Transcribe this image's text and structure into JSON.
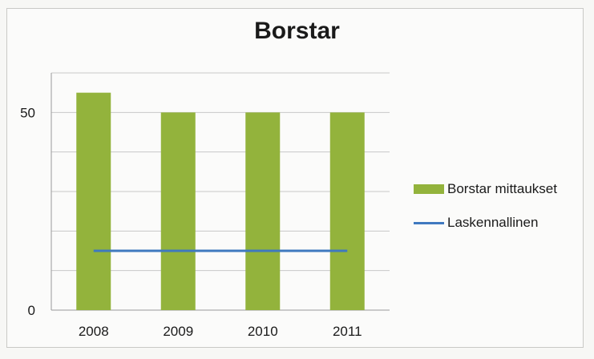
{
  "chart_data": {
    "type": "bar",
    "title": "Borstar",
    "categories": [
      "2008",
      "2009",
      "2010",
      "2011"
    ],
    "series": [
      {
        "name": "Borstar mittaukset",
        "type": "bar",
        "values": [
          55,
          50,
          50,
          50
        ]
      },
      {
        "name": "Laskennallinen",
        "type": "line",
        "values": [
          15,
          15,
          15,
          15
        ]
      }
    ],
    "ylim": [
      0,
      60
    ],
    "yticks": [
      0,
      50
    ],
    "grid": true,
    "legend": "right",
    "colors": {
      "bar": "#93b33c",
      "line": "#3f79bf",
      "grid": "#c8c8c8"
    }
  }
}
